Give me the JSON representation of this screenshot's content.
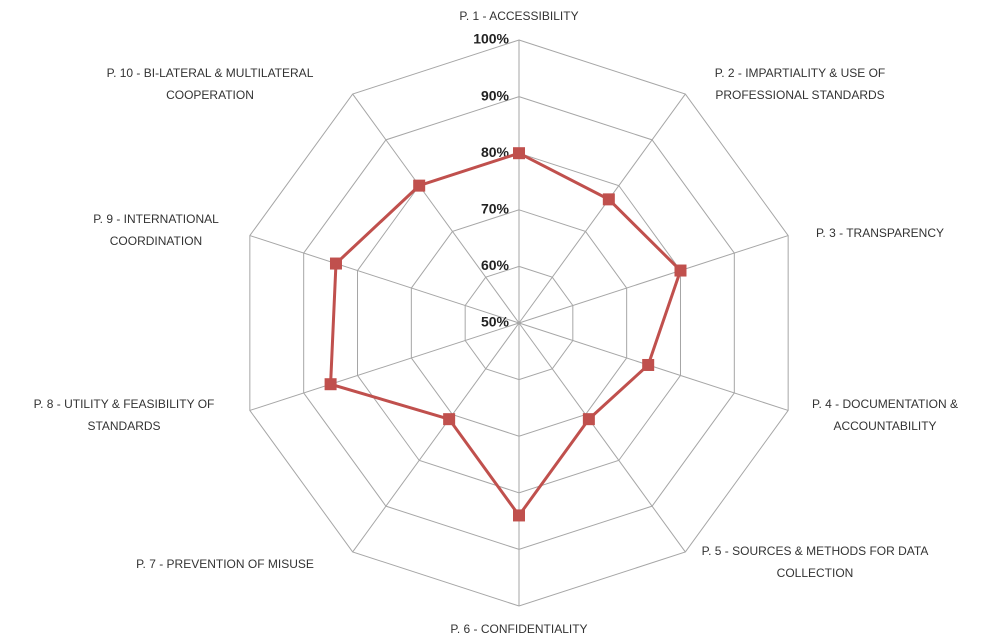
{
  "chart_data": {
    "type": "radar",
    "categories": [
      "P. 1 - ACCESSIBILITY",
      "P. 2 - IMPARTIALITY & USE OF PROFESSIONAL STANDARDS",
      "P. 3 - TRANSPARENCY",
      "P. 4 - DOCUMENTATION & ACCOUNTABILITY",
      "P. 5 - SOURCES & METHODS FOR DATA COLLECTION",
      "P. 6 - CONFIDENTIALITY",
      "P. 7 - PREVENTION OF MISUSE",
      "P. 8 - UTILITY & FEASIBILITY OF STANDARDS",
      "P. 9 - INTERNATIONAL COORDINATION",
      "P. 10 - BI-LATERAL & MULTILATERAL COOPERATION"
    ],
    "series": [
      {
        "color": "#c0504d",
        "values": [
          80,
          77,
          80,
          74,
          71,
          84,
          71,
          85,
          84,
          80
        ]
      }
    ],
    "rlim": [
      50,
      100
    ],
    "rticks": [
      {
        "value": 50,
        "label": "50%"
      },
      {
        "value": 60,
        "label": "60%"
      },
      {
        "value": 70,
        "label": "70%"
      },
      {
        "value": 80,
        "label": "80%"
      },
      {
        "value": 90,
        "label": "90%"
      },
      {
        "value": 100,
        "label": "100%"
      }
    ],
    "grid": true
  }
}
